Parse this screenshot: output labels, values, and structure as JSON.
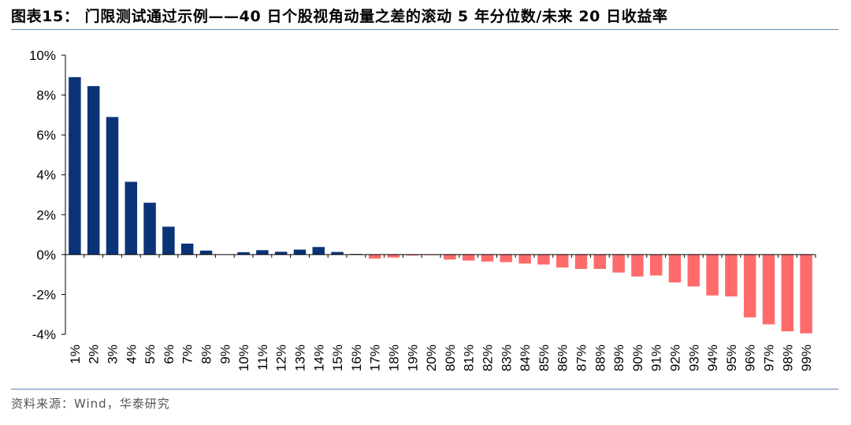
{
  "header": {
    "title": "图表15：  门限测试通过示例——40 日个股视角动量之差的滚动 5 年分位数/未来 20 日收益率"
  },
  "footer": {
    "source": "资料来源：Wind，华泰研究"
  },
  "colors": {
    "positive_bar": "#0b3377",
    "negative_bar": "#ff6b6b",
    "rule": "#5b87ad"
  },
  "chart_data": {
    "type": "bar",
    "title": "",
    "xlabel": "",
    "ylabel": "",
    "ylim": [
      -4,
      10
    ],
    "yticks": [
      "10%",
      "8%",
      "6%",
      "4%",
      "2%",
      "0%",
      "-2%",
      "-4%"
    ],
    "grid": false,
    "legend": "none",
    "categories": [
      "1%",
      "2%",
      "3%",
      "4%",
      "5%",
      "6%",
      "7%",
      "8%",
      "9%",
      "10%",
      "11%",
      "12%",
      "13%",
      "14%",
      "15%",
      "16%",
      "17%",
      "18%",
      "19%",
      "20%",
      "80%",
      "81%",
      "82%",
      "83%",
      "84%",
      "85%",
      "86%",
      "87%",
      "88%",
      "89%",
      "90%",
      "91%",
      "92%",
      "93%",
      "94%",
      "95%",
      "96%",
      "97%",
      "98%",
      "99%"
    ],
    "values": [
      8.9,
      8.45,
      6.9,
      3.65,
      2.6,
      1.4,
      0.55,
      0.2,
      0.0,
      0.12,
      0.22,
      0.14,
      0.25,
      0.38,
      0.13,
      0.03,
      -0.2,
      -0.15,
      -0.05,
      -0.03,
      -0.25,
      -0.3,
      -0.35,
      -0.38,
      -0.45,
      -0.5,
      -0.65,
      -0.72,
      -0.72,
      -0.9,
      -1.1,
      -1.05,
      -1.4,
      -1.6,
      -2.05,
      -2.1,
      -3.15,
      -3.5,
      -3.85,
      -3.95
    ]
  }
}
